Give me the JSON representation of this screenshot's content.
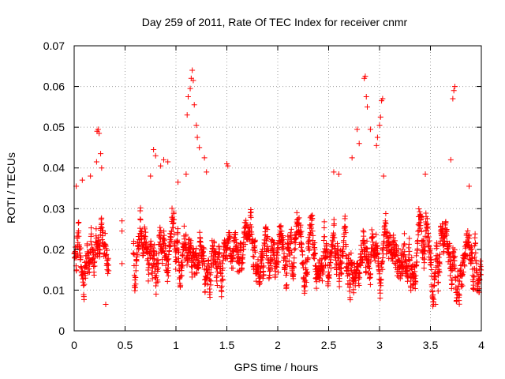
{
  "chart_data": {
    "type": "scatter",
    "title": "Day 259 of 2011, Rate Of TEC Index for receiver cnmr",
    "xlabel": "GPS time / hours",
    "ylabel": "ROTI / TECUs",
    "xlim": [
      0,
      4
    ],
    "ylim": [
      0,
      0.07
    ],
    "x_ticks": [
      0,
      0.5,
      1,
      1.5,
      2,
      2.5,
      3,
      3.5,
      4
    ],
    "x_tick_labels": [
      "0",
      "0.5",
      "1",
      "1.5",
      "2",
      "2.5",
      "3",
      "3.5",
      "4"
    ],
    "y_ticks": [
      0,
      0.01,
      0.02,
      0.03,
      0.04,
      0.05,
      0.06,
      0.07
    ],
    "y_tick_labels": [
      "0",
      "0.01",
      "0.02",
      "0.03",
      "0.04",
      "0.05",
      "0.06",
      "0.07"
    ],
    "grid": true,
    "marker": "plus",
    "marker_color": "#ff0000",
    "series": [
      {
        "name": "cnmr",
        "segments": [
          {
            "t_start": 0.0,
            "t_end": 0.34,
            "y_min": 0.007,
            "y_max": 0.034,
            "center": 0.019,
            "count": 180
          },
          {
            "t_start": 0.58,
            "t_end": 4.0,
            "y_min": 0.006,
            "y_max": 0.034,
            "center": 0.018,
            "count": 2000
          }
        ],
        "peaks": [
          {
            "x": 0.02,
            "y": 0.0355
          },
          {
            "x": 0.08,
            "y": 0.037
          },
          {
            "x": 0.16,
            "y": 0.038
          },
          {
            "x": 0.22,
            "y": 0.0415
          },
          {
            "x": 0.225,
            "y": 0.049
          },
          {
            "x": 0.235,
            "y": 0.0495
          },
          {
            "x": 0.245,
            "y": 0.0485
          },
          {
            "x": 0.26,
            "y": 0.0435
          },
          {
            "x": 0.27,
            "y": 0.04
          },
          {
            "x": 0.31,
            "y": 0.0065
          },
          {
            "x": 0.47,
            "y": 0.0165
          },
          {
            "x": 0.47,
            "y": 0.0245
          },
          {
            "x": 0.47,
            "y": 0.027
          },
          {
            "x": 0.75,
            "y": 0.038
          },
          {
            "x": 0.78,
            "y": 0.0445
          },
          {
            "x": 0.8,
            "y": 0.043
          },
          {
            "x": 0.85,
            "y": 0.0405
          },
          {
            "x": 0.88,
            "y": 0.042
          },
          {
            "x": 0.92,
            "y": 0.0415
          },
          {
            "x": 1.02,
            "y": 0.0365
          },
          {
            "x": 1.1,
            "y": 0.0385
          },
          {
            "x": 1.11,
            "y": 0.053
          },
          {
            "x": 1.12,
            "y": 0.0575
          },
          {
            "x": 1.14,
            "y": 0.0595
          },
          {
            "x": 1.15,
            "y": 0.062
          },
          {
            "x": 1.16,
            "y": 0.064
          },
          {
            "x": 1.17,
            "y": 0.0615
          },
          {
            "x": 1.18,
            "y": 0.0555
          },
          {
            "x": 1.2,
            "y": 0.0505
          },
          {
            "x": 1.21,
            "y": 0.0475
          },
          {
            "x": 1.23,
            "y": 0.045
          },
          {
            "x": 1.28,
            "y": 0.0425
          },
          {
            "x": 1.3,
            "y": 0.039
          },
          {
            "x": 1.5,
            "y": 0.041
          },
          {
            "x": 1.51,
            "y": 0.0405
          },
          {
            "x": 2.55,
            "y": 0.039
          },
          {
            "x": 2.6,
            "y": 0.0385
          },
          {
            "x": 2.73,
            "y": 0.0425
          },
          {
            "x": 2.78,
            "y": 0.0495
          },
          {
            "x": 2.8,
            "y": 0.046
          },
          {
            "x": 2.85,
            "y": 0.062
          },
          {
            "x": 2.86,
            "y": 0.0625
          },
          {
            "x": 2.87,
            "y": 0.0575
          },
          {
            "x": 2.88,
            "y": 0.055
          },
          {
            "x": 2.91,
            "y": 0.0495
          },
          {
            "x": 2.97,
            "y": 0.0455
          },
          {
            "x": 2.98,
            "y": 0.0475
          },
          {
            "x": 3.0,
            "y": 0.0505
          },
          {
            "x": 3.01,
            "y": 0.0525
          },
          {
            "x": 3.02,
            "y": 0.0565
          },
          {
            "x": 3.03,
            "y": 0.057
          },
          {
            "x": 3.04,
            "y": 0.038
          },
          {
            "x": 3.45,
            "y": 0.0385
          },
          {
            "x": 3.52,
            "y": 0.0085
          },
          {
            "x": 3.55,
            "y": 0.0065
          },
          {
            "x": 3.7,
            "y": 0.042
          },
          {
            "x": 3.72,
            "y": 0.057
          },
          {
            "x": 3.73,
            "y": 0.059
          },
          {
            "x": 3.74,
            "y": 0.06
          },
          {
            "x": 3.88,
            "y": 0.0355
          },
          {
            "x": 3.98,
            "y": 0.0095
          }
        ]
      }
    ]
  }
}
